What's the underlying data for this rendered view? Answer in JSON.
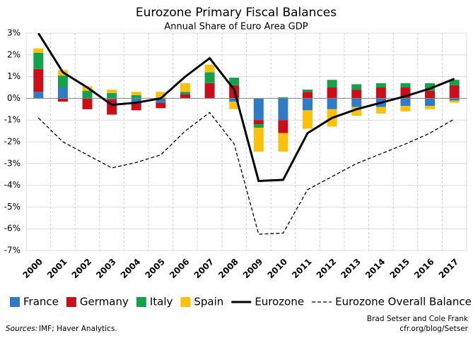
{
  "chart_data": {
    "type": "bar",
    "title": "Eurozone Primary Fiscal Balances",
    "subtitle": "Annual Share of Euro Area GDP",
    "categories": [
      "2000",
      "2001",
      "2002",
      "2003",
      "2004",
      "2005",
      "2006",
      "2007",
      "2008",
      "2009",
      "2010",
      "2011",
      "2012",
      "2013",
      "2014",
      "2015",
      "2016",
      "2017"
    ],
    "series": [
      {
        "name": "France",
        "type": "bar",
        "color": "#2f7bc4",
        "values": [
          0.3,
          0.5,
          0,
          -0.05,
          -0.2,
          -0.2,
          0,
          0,
          -0.15,
          -1.0,
          -1.0,
          -0.55,
          -0.5,
          -0.4,
          -0.4,
          -0.35,
          -0.35,
          -0.1
        ]
      },
      {
        "name": "Germany",
        "type": "bar",
        "color": "#c8101b",
        "values": [
          1.05,
          -0.15,
          -0.5,
          -0.7,
          -0.35,
          -0.25,
          0.2,
          0.7,
          0.6,
          -0.2,
          -0.6,
          0.3,
          0.5,
          0.4,
          0.5,
          0.5,
          0.35,
          0.6
        ]
      },
      {
        "name": "Italy",
        "type": "bar",
        "color": "#14a14a",
        "values": [
          0.75,
          0.55,
          0.35,
          0.25,
          0.15,
          0,
          0.1,
          0.5,
          0.35,
          -0.15,
          0.05,
          0.1,
          0.35,
          0.25,
          0.2,
          0.2,
          0.35,
          0.25
        ]
      },
      {
        "name": "Spain",
        "type": "bar",
        "color": "#fcc10f",
        "values": [
          0.2,
          0.25,
          0.2,
          0.15,
          0.15,
          0.3,
          0.4,
          0.35,
          -0.35,
          -1.1,
          -0.85,
          -0.85,
          -0.8,
          -0.4,
          -0.3,
          -0.25,
          -0.15,
          -0.1
        ]
      },
      {
        "name": "Eurozone",
        "type": "line",
        "color": "#000000",
        "line_style": "solid",
        "values": [
          3.0,
          1.2,
          0.5,
          -0.3,
          -0.2,
          0.0,
          1.0,
          1.85,
          0.4,
          -3.8,
          -3.75,
          -1.6,
          -0.9,
          -0.5,
          -0.2,
          0.1,
          0.45,
          0.9
        ]
      },
      {
        "name": "Eurozone Overall Balance",
        "type": "line",
        "color": "#000000",
        "line_style": "dashed",
        "values": [
          -0.9,
          -2.0,
          -2.6,
          -3.2,
          -2.95,
          -2.6,
          -1.5,
          -0.65,
          -2.1,
          -6.25,
          -6.2,
          -4.2,
          -3.6,
          -3.0,
          -2.55,
          -2.1,
          -1.6,
          -0.95
        ]
      }
    ],
    "ylim": [
      -7,
      3
    ],
    "yticks": [
      {
        "value": 3,
        "label": "3%"
      },
      {
        "value": 2,
        "label": "2%"
      },
      {
        "value": 1,
        "label": "1%"
      },
      {
        "value": 0,
        "label": "0%"
      },
      {
        "value": -1,
        "label": "-1%"
      },
      {
        "value": -2,
        "label": "-2%"
      },
      {
        "value": -3,
        "label": "-3%"
      },
      {
        "value": -4,
        "label": "-4%"
      },
      {
        "value": -5,
        "label": "-5%"
      },
      {
        "value": -6,
        "label": "-6%"
      },
      {
        "value": -7,
        "label": "-7%"
      }
    ],
    "grid": true,
    "legend": "bottom",
    "sources_label": "Sources:",
    "sources": "IMF; Haver Analytics.",
    "credit": [
      "Brad Setser and Cole Frank",
      "cfr.org/blog/Setser"
    ]
  }
}
